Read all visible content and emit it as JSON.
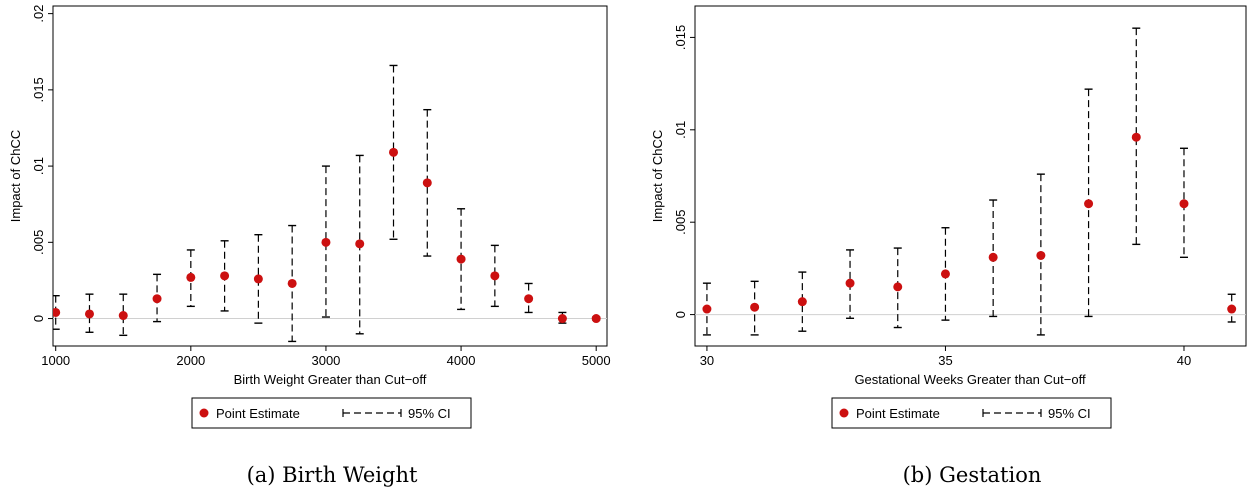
{
  "chart_data": [
    {
      "type": "scatter",
      "caption": "(a) Birth Weight",
      "xlabel": "Birth Weight Greater than Cut−off",
      "ylabel": "Impact of ChCC",
      "xlim": [
        980,
        5080
      ],
      "ylim": [
        -0.0018,
        0.0205
      ],
      "xticks": [
        1000,
        2000,
        3000,
        4000,
        5000
      ],
      "xtick_labels": [
        "1000",
        "2000",
        "3000",
        "4000",
        "5000"
      ],
      "yticks": [
        0,
        0.005,
        0.01,
        0.015,
        0.02
      ],
      "ytick_labels": [
        "0",
        ".005",
        ".01",
        ".015",
        ".02"
      ],
      "zero_line": true,
      "legend": {
        "placement": "bottom-center",
        "entries": [
          "Point Estimate",
          "95% CI"
        ]
      },
      "x": [
        1000,
        1250,
        1500,
        1750,
        2000,
        2250,
        2500,
        2750,
        3000,
        3250,
        3500,
        3750,
        4000,
        4250,
        4500,
        4750,
        5000
      ],
      "estimate": [
        0.0004,
        0.0003,
        0.0002,
        0.0013,
        0.0027,
        0.0028,
        0.0026,
        0.0023,
        0.005,
        0.0049,
        0.0109,
        0.0089,
        0.0039,
        0.0028,
        0.0013,
        0.0,
        0.0
      ],
      "ci_lower": [
        -0.0007,
        -0.0009,
        -0.0011,
        -0.0002,
        0.0008,
        0.0005,
        -0.0003,
        -0.0015,
        0.0001,
        -0.001,
        0.0052,
        0.0041,
        0.0006,
        0.0008,
        0.0004,
        -0.0003,
        -0.0001
      ],
      "ci_upper": [
        0.0015,
        0.0016,
        0.0016,
        0.0029,
        0.0045,
        0.0051,
        0.0055,
        0.0061,
        0.01,
        0.0107,
        0.0166,
        0.0137,
        0.0072,
        0.0048,
        0.0023,
        0.0004,
        0.0001
      ]
    },
    {
      "type": "scatter",
      "caption": "(b) Gestation",
      "xlabel": "Gestational Weeks Greater than Cut−off",
      "ylabel": "Impact of ChCC",
      "xlim": [
        29.75,
        41.3
      ],
      "ylim": [
        -0.0017,
        0.0167
      ],
      "xticks": [
        30,
        35,
        40
      ],
      "xtick_labels": [
        "30",
        "35",
        "40"
      ],
      "yticks": [
        0,
        0.005,
        0.01,
        0.015
      ],
      "ytick_labels": [
        "0",
        ".005",
        ".01",
        ".015"
      ],
      "zero_line": true,
      "legend": {
        "placement": "bottom-center",
        "entries": [
          "Point Estimate",
          "95% CI"
        ]
      },
      "x": [
        30,
        31,
        32,
        33,
        34,
        35,
        36,
        37,
        38,
        39,
        40,
        41
      ],
      "estimate": [
        0.0003,
        0.0004,
        0.0007,
        0.0017,
        0.0015,
        0.0022,
        0.0031,
        0.0032,
        0.006,
        0.0096,
        0.006,
        0.0003
      ],
      "ci_lower": [
        -0.0011,
        -0.0011,
        -0.0009,
        -0.0002,
        -0.0007,
        -0.0003,
        -0.0001,
        -0.0011,
        -0.0001,
        0.0038,
        0.0031,
        -0.0004
      ],
      "ci_upper": [
        0.0017,
        0.0018,
        0.0023,
        0.0035,
        0.0036,
        0.0047,
        0.0062,
        0.0076,
        0.0122,
        0.0155,
        0.009,
        0.0011
      ]
    }
  ],
  "colors": {
    "point": "#cc1010",
    "ci": "#000000",
    "axis": "#000000",
    "zero_line": "#d0d0d0"
  }
}
